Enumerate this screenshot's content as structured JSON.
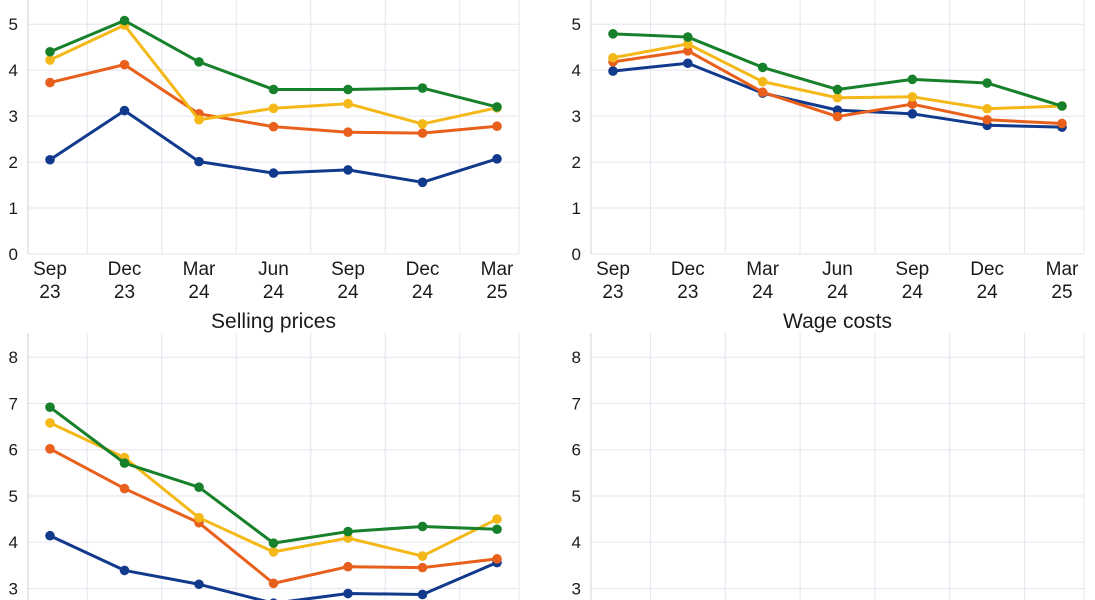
{
  "colors": {
    "grid": "#e6e4ee",
    "axis": "#cfcfdc",
    "series": [
      "#123a8c",
      "#e8601c",
      "#f4b918",
      "#16802a"
    ]
  },
  "chart_data": [
    {
      "type": "line",
      "title": "Selling prices",
      "categories": [
        [
          "Sep",
          "23"
        ],
        [
          "Dec",
          "23"
        ],
        [
          "Mar",
          "24"
        ],
        [
          "Jun",
          "24"
        ],
        [
          "Sep",
          "24"
        ],
        [
          "Dec",
          "24"
        ],
        [
          "Mar",
          "25"
        ]
      ],
      "yticks": [
        "0",
        "1",
        "2",
        "3",
        "4",
        "5"
      ],
      "ylim": [
        0,
        5.2
      ],
      "series": [
        {
          "values": [
            2.05,
            3.12,
            2.01,
            1.76,
            1.83,
            1.56,
            2.07
          ]
        },
        {
          "values": [
            3.73,
            4.12,
            3.05,
            2.77,
            2.65,
            2.63,
            2.78
          ]
        },
        {
          "values": [
            4.22,
            4.98,
            2.92,
            3.17,
            3.27,
            2.83,
            3.18
          ]
        },
        {
          "values": [
            4.4,
            5.08,
            4.18,
            3.58,
            3.58,
            3.61,
            3.2
          ]
        }
      ]
    },
    {
      "type": "line",
      "title": "Wage costs",
      "categories": [
        [
          "Sep",
          "23"
        ],
        [
          "Dec",
          "23"
        ],
        [
          "Mar",
          "24"
        ],
        [
          "Jun",
          "24"
        ],
        [
          "Sep",
          "24"
        ],
        [
          "Dec",
          "24"
        ],
        [
          "Mar",
          "25"
        ]
      ],
      "yticks": [
        "0",
        "1",
        "2",
        "3",
        "4",
        "5"
      ],
      "ylim": [
        0,
        5.2
      ],
      "series": [
        {
          "values": [
            3.98,
            4.15,
            3.5,
            3.13,
            3.05,
            2.8,
            2.76
          ]
        },
        {
          "values": [
            4.18,
            4.42,
            3.52,
            2.99,
            3.26,
            2.92,
            2.84
          ]
        },
        {
          "values": [
            4.27,
            4.57,
            3.75,
            3.4,
            3.42,
            3.16,
            3.22
          ]
        },
        {
          "values": [
            4.79,
            4.72,
            4.06,
            3.58,
            3.8,
            3.72,
            3.22
          ]
        }
      ]
    },
    {
      "type": "line",
      "title": "",
      "yticks": [
        "3",
        "4",
        "5",
        "6",
        "7",
        "8"
      ],
      "ylim": [
        2.75,
        8.2
      ],
      "series": [
        {
          "values": [
            4.14,
            3.39,
            3.09,
            2.68,
            2.89,
            2.87,
            3.56
          ]
        },
        {
          "values": [
            6.02,
            5.16,
            4.42,
            3.11,
            3.47,
            3.45,
            3.64
          ]
        },
        {
          "values": [
            6.58,
            5.83,
            4.53,
            3.79,
            4.09,
            3.7,
            4.5
          ]
        },
        {
          "values": [
            6.92,
            5.71,
            5.19,
            3.98,
            4.23,
            4.34,
            4.28
          ]
        }
      ]
    },
    {
      "type": "line",
      "title": "",
      "yticks": [
        "3",
        "4",
        "5",
        "6",
        "7",
        "8"
      ],
      "ylim": [
        2.75,
        8.2
      ],
      "series": []
    }
  ]
}
